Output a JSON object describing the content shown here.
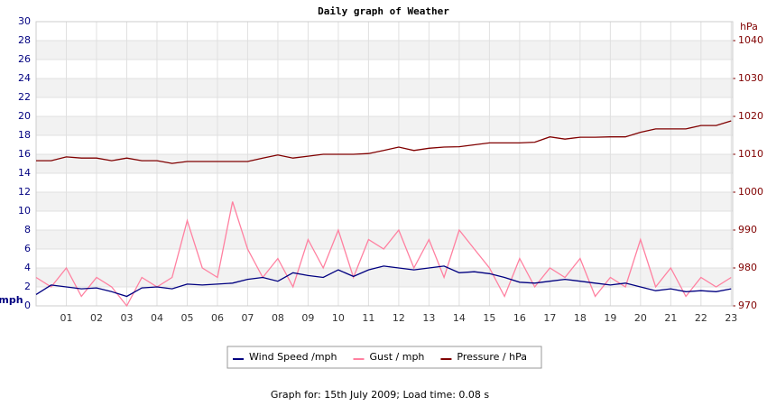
{
  "chart_data": {
    "type": "line",
    "title": "Daily graph of Weather",
    "y_label": "mph",
    "y2_label": "hPa",
    "x": [
      0,
      0.5,
      1,
      1.5,
      2,
      2.5,
      3,
      3.5,
      4,
      4.5,
      5,
      5.5,
      6,
      6.5,
      7,
      7.5,
      8,
      8.5,
      9,
      9.5,
      10,
      10.5,
      11,
      11.5,
      12,
      12.5,
      13,
      13.5,
      14,
      14.5,
      15,
      15.5,
      16,
      16.5,
      17,
      17.5,
      18,
      18.5,
      19,
      19.5,
      20,
      20.5,
      21,
      21.5,
      22,
      22.5,
      23
    ],
    "xlim": [
      0,
      23.05
    ],
    "xticks": [
      {
        "value": 1,
        "label": "01"
      },
      {
        "value": 2,
        "label": "02"
      },
      {
        "value": 3,
        "label": "03"
      },
      {
        "value": 4,
        "label": "04"
      },
      {
        "value": 5,
        "label": "05"
      },
      {
        "value": 6,
        "label": "06"
      },
      {
        "value": 7,
        "label": "07"
      },
      {
        "value": 8,
        "label": "08"
      },
      {
        "value": 9,
        "label": "09"
      },
      10,
      11,
      12,
      13,
      14,
      15,
      16,
      17,
      18,
      19,
      20,
      21,
      22,
      23
    ],
    "ylim": [
      0,
      30
    ],
    "yticks": [
      0,
      2,
      4,
      6,
      8,
      10,
      12,
      14,
      16,
      18,
      20,
      22,
      24,
      26,
      28,
      30
    ],
    "y2lim": [
      970,
      1045
    ],
    "y2ticks": [
      970,
      980,
      990,
      1000,
      1010,
      1020,
      1030,
      1040
    ],
    "grid": true,
    "series": [
      {
        "name": "Wind Speed /mph",
        "color": "#000080",
        "values": [
          1.2,
          2.2,
          2.0,
          1.8,
          1.9,
          1.5,
          1.0,
          1.9,
          2.0,
          1.8,
          2.3,
          2.2,
          2.3,
          2.4,
          2.8,
          3.0,
          2.6,
          3.5,
          3.2,
          3.0,
          3.8,
          3.1,
          3.8,
          4.2,
          4.0,
          3.8,
          4.0,
          4.2,
          3.5,
          3.6,
          3.4,
          3.0,
          2.5,
          2.4,
          2.6,
          2.8,
          2.6,
          2.4,
          2.2,
          2.4,
          2.0,
          1.6,
          1.8,
          1.5,
          1.6,
          1.5,
          1.8
        ]
      },
      {
        "name": "Gust / mph",
        "color": "#ff80a0",
        "values": [
          3,
          2,
          4,
          1,
          3,
          2,
          0,
          3,
          2,
          3,
          9,
          4,
          3,
          11,
          6,
          3,
          5,
          2,
          7,
          4,
          8,
          3,
          7,
          6,
          8,
          4,
          7,
          3,
          8,
          6,
          4,
          1,
          5,
          2,
          4,
          3,
          5,
          1,
          3,
          2,
          7,
          2,
          4,
          1,
          3,
          2,
          3
        ]
      },
      {
        "name": "Pressure / hPa",
        "color": "#800000",
        "axis": "y2",
        "values": [
          1008.3,
          1008.3,
          1009.3,
          1009,
          1009,
          1008.3,
          1009,
          1008.3,
          1008.3,
          1007.6,
          1008.1,
          1008.1,
          1008.1,
          1008.1,
          1008.1,
          1009,
          1009.8,
          1009,
          1009.5,
          1010,
          1010,
          1010,
          1010.2,
          1011,
          1011.9,
          1011,
          1011.6,
          1011.9,
          1012,
          1012.5,
          1013,
          1013,
          1013,
          1013.2,
          1014.6,
          1014,
          1014.5,
          1014.5,
          1014.6,
          1014.6,
          1015.8,
          1016.7,
          1016.7,
          1016.7,
          1017.6,
          1017.6,
          1018.8
        ]
      }
    ],
    "footer": "Graph for: 15th July 2009; Load time: 0.08 s"
  }
}
